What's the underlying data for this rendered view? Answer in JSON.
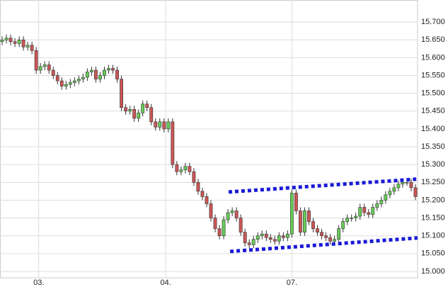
{
  "chart_data": {
    "type": "candlestick",
    "up_color": "#66cc55",
    "down_color": "#cc5555",
    "outline_color": "#333333",
    "grid": true,
    "xlim": [
      -0.5,
      97.5
    ],
    "xticks": [
      {
        "value": 8.6,
        "label": "03."
      },
      {
        "value": 38.4,
        "label": "04."
      },
      {
        "value": 68,
        "label": "07."
      }
    ],
    "ylim": [
      14.982,
      15.762
    ],
    "yticks": [
      {
        "value": 15.0,
        "label": "15.000"
      },
      {
        "value": 15.05,
        "label": "15.050"
      },
      {
        "value": 15.1,
        "label": "15.100"
      },
      {
        "value": 15.15,
        "label": "15.150"
      },
      {
        "value": 15.2,
        "label": "15.200"
      },
      {
        "value": 15.25,
        "label": "15.250"
      },
      {
        "value": 15.3,
        "label": "15.300"
      },
      {
        "value": 15.35,
        "label": "15.350"
      },
      {
        "value": 15.4,
        "label": "15.400"
      },
      {
        "value": 15.45,
        "label": "15.450"
      },
      {
        "value": 15.5,
        "label": "15.500"
      },
      {
        "value": 15.55,
        "label": "15.550"
      },
      {
        "value": 15.6,
        "label": "15.600"
      },
      {
        "value": 15.65,
        "label": "15.650"
      },
      {
        "value": 15.7,
        "label": "15.700"
      }
    ],
    "open": [
      15.645,
      15.65,
      15.655,
      15.645,
      15.64,
      15.65,
      15.63,
      15.635,
      15.62,
      15.565,
      15.575,
      15.58,
      15.565,
      15.55,
      15.535,
      15.52,
      15.525,
      15.53,
      15.535,
      15.54,
      15.545,
      15.56,
      15.565,
      15.54,
      15.55,
      15.565,
      15.57,
      15.565,
      15.54,
      15.46,
      15.45,
      15.455,
      15.43,
      15.445,
      15.47,
      15.46,
      15.42,
      15.405,
      15.42,
      15.4,
      15.42,
      15.3,
      15.28,
      15.285,
      15.295,
      15.28,
      15.25,
      15.225,
      15.21,
      15.19,
      15.15,
      15.12,
      15.1,
      15.145,
      15.165,
      15.17,
      15.15,
      15.11,
      15.08,
      15.075,
      15.09,
      15.1,
      15.105,
      15.095,
      15.09,
      15.085,
      15.1,
      15.095,
      15.105,
      15.22,
      15.17,
      15.11,
      15.17,
      15.14,
      15.12,
      15.11,
      15.1,
      15.095,
      15.085,
      15.09,
      15.12,
      15.14,
      15.15,
      15.15,
      15.155,
      15.18,
      15.165,
      15.16,
      15.18,
      15.19,
      15.2,
      15.215,
      15.225,
      15.235,
      15.245,
      15.25,
      15.25,
      15.235
    ],
    "high": [
      15.66,
      15.665,
      15.665,
      15.655,
      15.66,
      15.66,
      15.645,
      15.645,
      15.63,
      15.585,
      15.59,
      15.59,
      15.575,
      15.56,
      15.545,
      15.535,
      15.54,
      15.545,
      15.55,
      15.555,
      15.57,
      15.575,
      15.575,
      15.56,
      15.575,
      15.58,
      15.58,
      15.575,
      15.55,
      15.47,
      15.465,
      15.465,
      15.455,
      15.48,
      15.48,
      15.47,
      15.43,
      15.43,
      15.43,
      15.43,
      15.43,
      15.31,
      15.295,
      15.305,
      15.305,
      15.29,
      15.26,
      15.235,
      15.22,
      15.2,
      15.16,
      15.13,
      15.155,
      15.175,
      15.18,
      15.18,
      15.16,
      15.12,
      15.09,
      15.1,
      15.11,
      15.115,
      15.115,
      15.105,
      15.1,
      15.11,
      15.11,
      15.115,
      15.23,
      15.23,
      15.18,
      15.18,
      15.18,
      15.15,
      15.13,
      15.12,
      15.11,
      15.105,
      15.1,
      15.13,
      15.15,
      15.16,
      15.16,
      15.165,
      15.19,
      15.19,
      15.175,
      15.19,
      15.2,
      15.21,
      15.225,
      15.235,
      15.245,
      15.255,
      15.26,
      15.26,
      15.26,
      15.245
    ],
    "low": [
      15.635,
      15.64,
      15.635,
      15.63,
      15.63,
      15.62,
      15.62,
      15.61,
      15.555,
      15.555,
      15.565,
      15.555,
      15.54,
      15.525,
      15.51,
      15.51,
      15.515,
      15.52,
      15.525,
      15.53,
      15.535,
      15.55,
      15.53,
      15.53,
      15.54,
      15.555,
      15.555,
      15.53,
      15.45,
      15.44,
      15.44,
      15.42,
      15.42,
      15.435,
      15.45,
      15.41,
      15.395,
      15.395,
      15.39,
      15.39,
      15.29,
      15.27,
      15.27,
      15.275,
      15.27,
      15.24,
      15.215,
      15.2,
      15.18,
      15.14,
      15.11,
      15.09,
      15.09,
      15.135,
      15.155,
      15.14,
      15.1,
      15.07,
      15.065,
      15.065,
      15.08,
      15.09,
      15.085,
      15.08,
      15.075,
      15.075,
      15.085,
      15.085,
      15.095,
      15.16,
      15.1,
      15.1,
      15.13,
      15.11,
      15.1,
      15.09,
      15.085,
      15.075,
      15.075,
      15.08,
      15.11,
      15.13,
      15.14,
      15.14,
      15.145,
      15.155,
      15.15,
      15.15,
      15.17,
      15.18,
      15.19,
      15.205,
      15.215,
      15.225,
      15.235,
      15.24,
      15.225,
      15.2
    ],
    "close": [
      15.65,
      15.655,
      15.645,
      15.64,
      15.65,
      15.63,
      15.635,
      15.62,
      15.565,
      15.575,
      15.58,
      15.565,
      15.55,
      15.535,
      15.52,
      15.525,
      15.53,
      15.535,
      15.54,
      15.545,
      15.56,
      15.565,
      15.54,
      15.55,
      15.565,
      15.57,
      15.565,
      15.54,
      15.46,
      15.45,
      15.455,
      15.43,
      15.445,
      15.47,
      15.46,
      15.42,
      15.405,
      15.42,
      15.4,
      15.42,
      15.3,
      15.28,
      15.285,
      15.295,
      15.28,
      15.25,
      15.225,
      15.21,
      15.19,
      15.15,
      15.12,
      15.1,
      15.145,
      15.165,
      15.17,
      15.15,
      15.11,
      15.08,
      15.075,
      15.09,
      15.1,
      15.105,
      15.095,
      15.09,
      15.085,
      15.1,
      15.095,
      15.105,
      15.22,
      15.17,
      15.11,
      15.17,
      15.14,
      15.12,
      15.11,
      15.1,
      15.095,
      15.085,
      15.09,
      15.12,
      15.14,
      15.15,
      15.15,
      15.155,
      15.18,
      15.165,
      15.16,
      15.18,
      15.19,
      15.2,
      15.215,
      15.225,
      15.235,
      15.245,
      15.25,
      15.25,
      15.235,
      15.21
    ],
    "trend_lines": [
      {
        "x": [
          53.15,
          97.2
        ],
        "y": [
          15.223,
          15.259
        ],
        "color": "#1a1ad8"
      },
      {
        "x": [
          53.5,
          97.5
        ],
        "y": [
          15.056,
          15.094
        ],
        "color": "#1a1ad8"
      }
    ]
  }
}
